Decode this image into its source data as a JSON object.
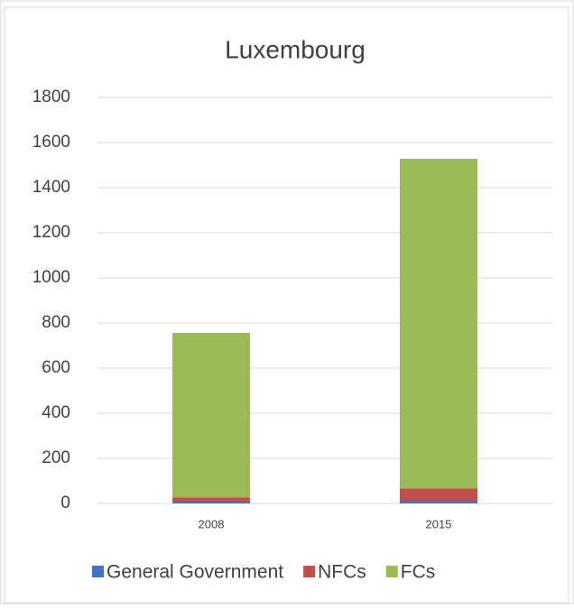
{
  "chart_data": {
    "type": "stacked_bar",
    "title": "Luxembourg",
    "categories": [
      "2008",
      "2015"
    ],
    "series": [
      {
        "name": "General Government",
        "color": "#4472c4",
        "values": [
          8,
          12
        ]
      },
      {
        "name": "NFCs",
        "color": "#c0504d",
        "values": [
          18,
          55
        ]
      },
      {
        "name": "FCs",
        "color": "#9bbb59",
        "values": [
          730,
          1461
        ]
      }
    ],
    "ylim": [
      0,
      1800
    ],
    "yticks": [
      0,
      200,
      400,
      600,
      800,
      1000,
      1200,
      1400,
      1600,
      1800
    ],
    "grid": true,
    "legend": "bottom"
  }
}
